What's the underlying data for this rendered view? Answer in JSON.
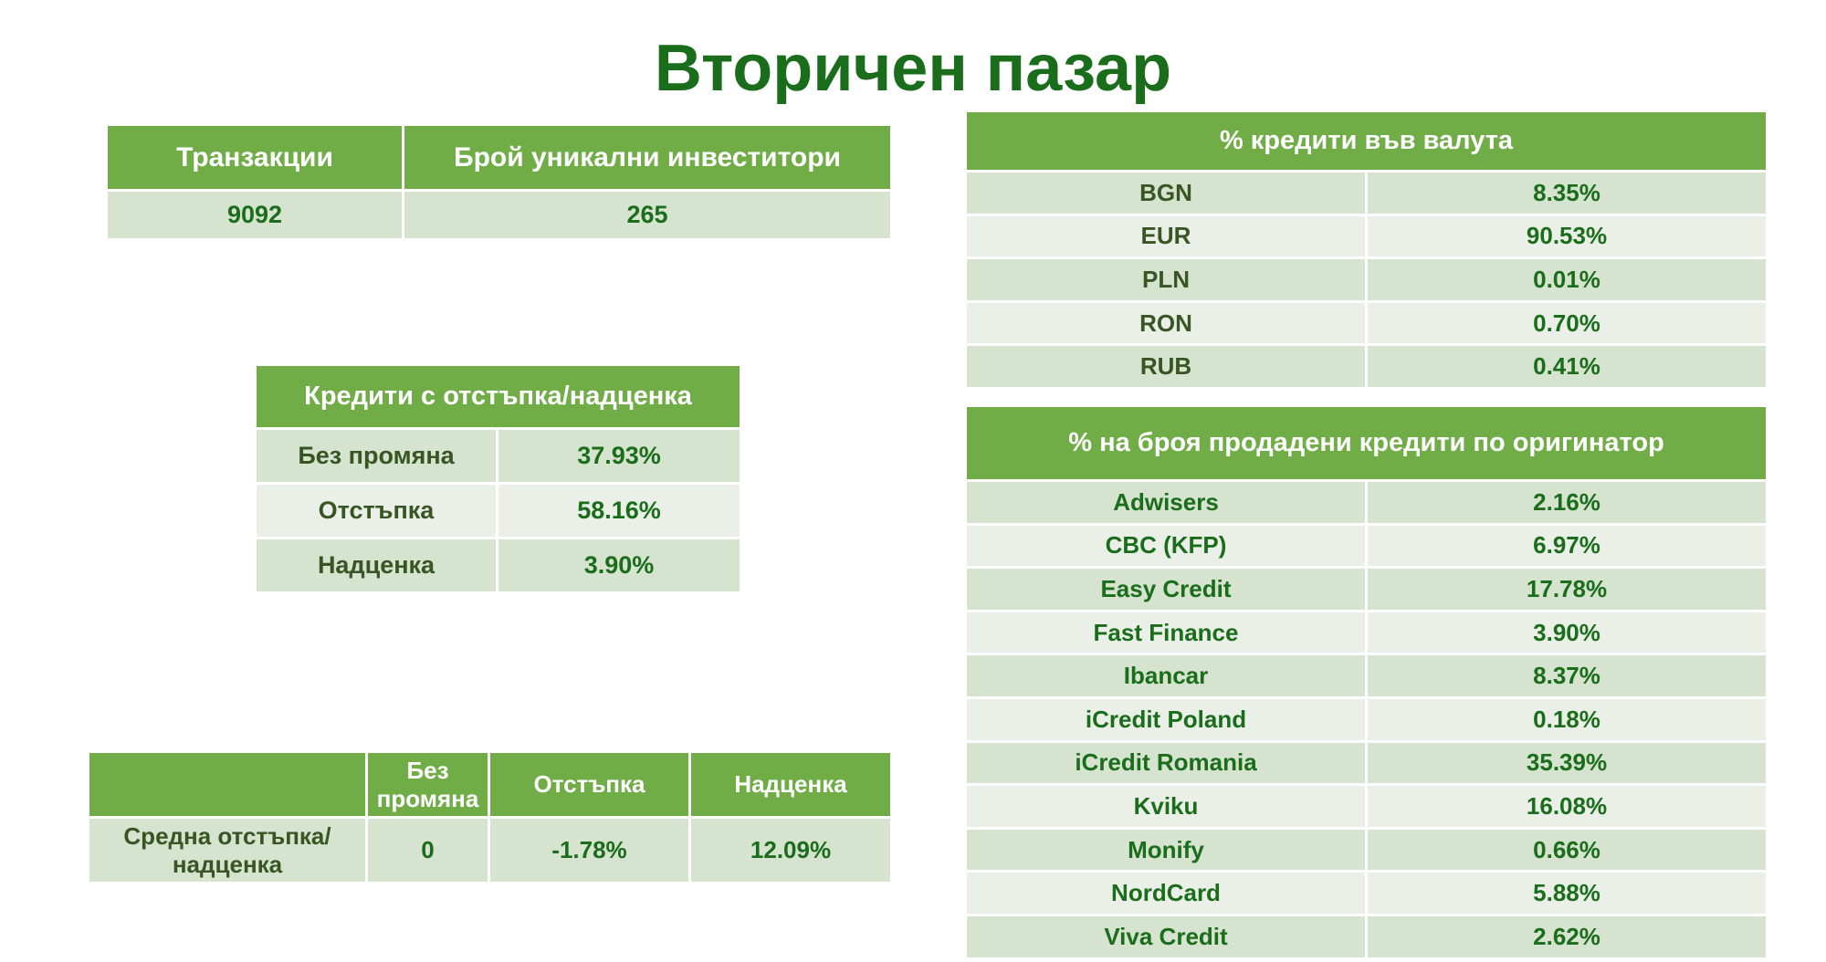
{
  "title": "Вторичен пазар",
  "transactions_table": {
    "headers": [
      "Транзакции",
      "Брой уникални инвеститори"
    ],
    "values": [
      "9092",
      "265"
    ]
  },
  "discount_table": {
    "header": "Кредити с отстъпка/надценка",
    "rows": [
      {
        "label": "Без промяна",
        "value": "37.93%"
      },
      {
        "label": "Отстъпка",
        "value": "58.16%"
      },
      {
        "label": "Надценка",
        "value": "3.90%"
      }
    ]
  },
  "average_table": {
    "headers": [
      "",
      "Без промяна",
      "Отстъпка",
      "Надценка"
    ],
    "row_label": "Средна отстъпка/надценка",
    "values": [
      "0",
      "-1.78%",
      "12.09%"
    ]
  },
  "currency_table": {
    "header": "% кредити във валута",
    "rows": [
      {
        "label": "BGN",
        "value": "8.35%"
      },
      {
        "label": "EUR",
        "value": "90.53%"
      },
      {
        "label": "PLN",
        "value": "0.01%"
      },
      {
        "label": "RON",
        "value": "0.70%"
      },
      {
        "label": "RUB",
        "value": "0.41%"
      }
    ]
  },
  "originator_table": {
    "header": "% на броя продадени кредити по оригинатор",
    "rows": [
      {
        "label": "Adwisers",
        "value": "2.16%"
      },
      {
        "label": "CBC (KFP)",
        "value": "6.97%"
      },
      {
        "label": "Easy Credit",
        "value": "17.78%"
      },
      {
        "label": "Fast Finance",
        "value": "3.90%"
      },
      {
        "label": "Ibancar",
        "value": "8.37%"
      },
      {
        "label": "iCredit Poland",
        "value": "0.18%"
      },
      {
        "label": "iCredit Romania",
        "value": "35.39%"
      },
      {
        "label": "Kviku",
        "value": "16.08%"
      },
      {
        "label": "Monify",
        "value": "0.66%"
      },
      {
        "label": "NordCard",
        "value": "5.88%"
      },
      {
        "label": "Viva Credit",
        "value": "2.62%"
      }
    ]
  },
  "colors": {
    "header_bg": "#70ad47",
    "row_dark": "#d5e3cf",
    "row_light": "#eaf0e7",
    "title": "#1a6d1a"
  }
}
